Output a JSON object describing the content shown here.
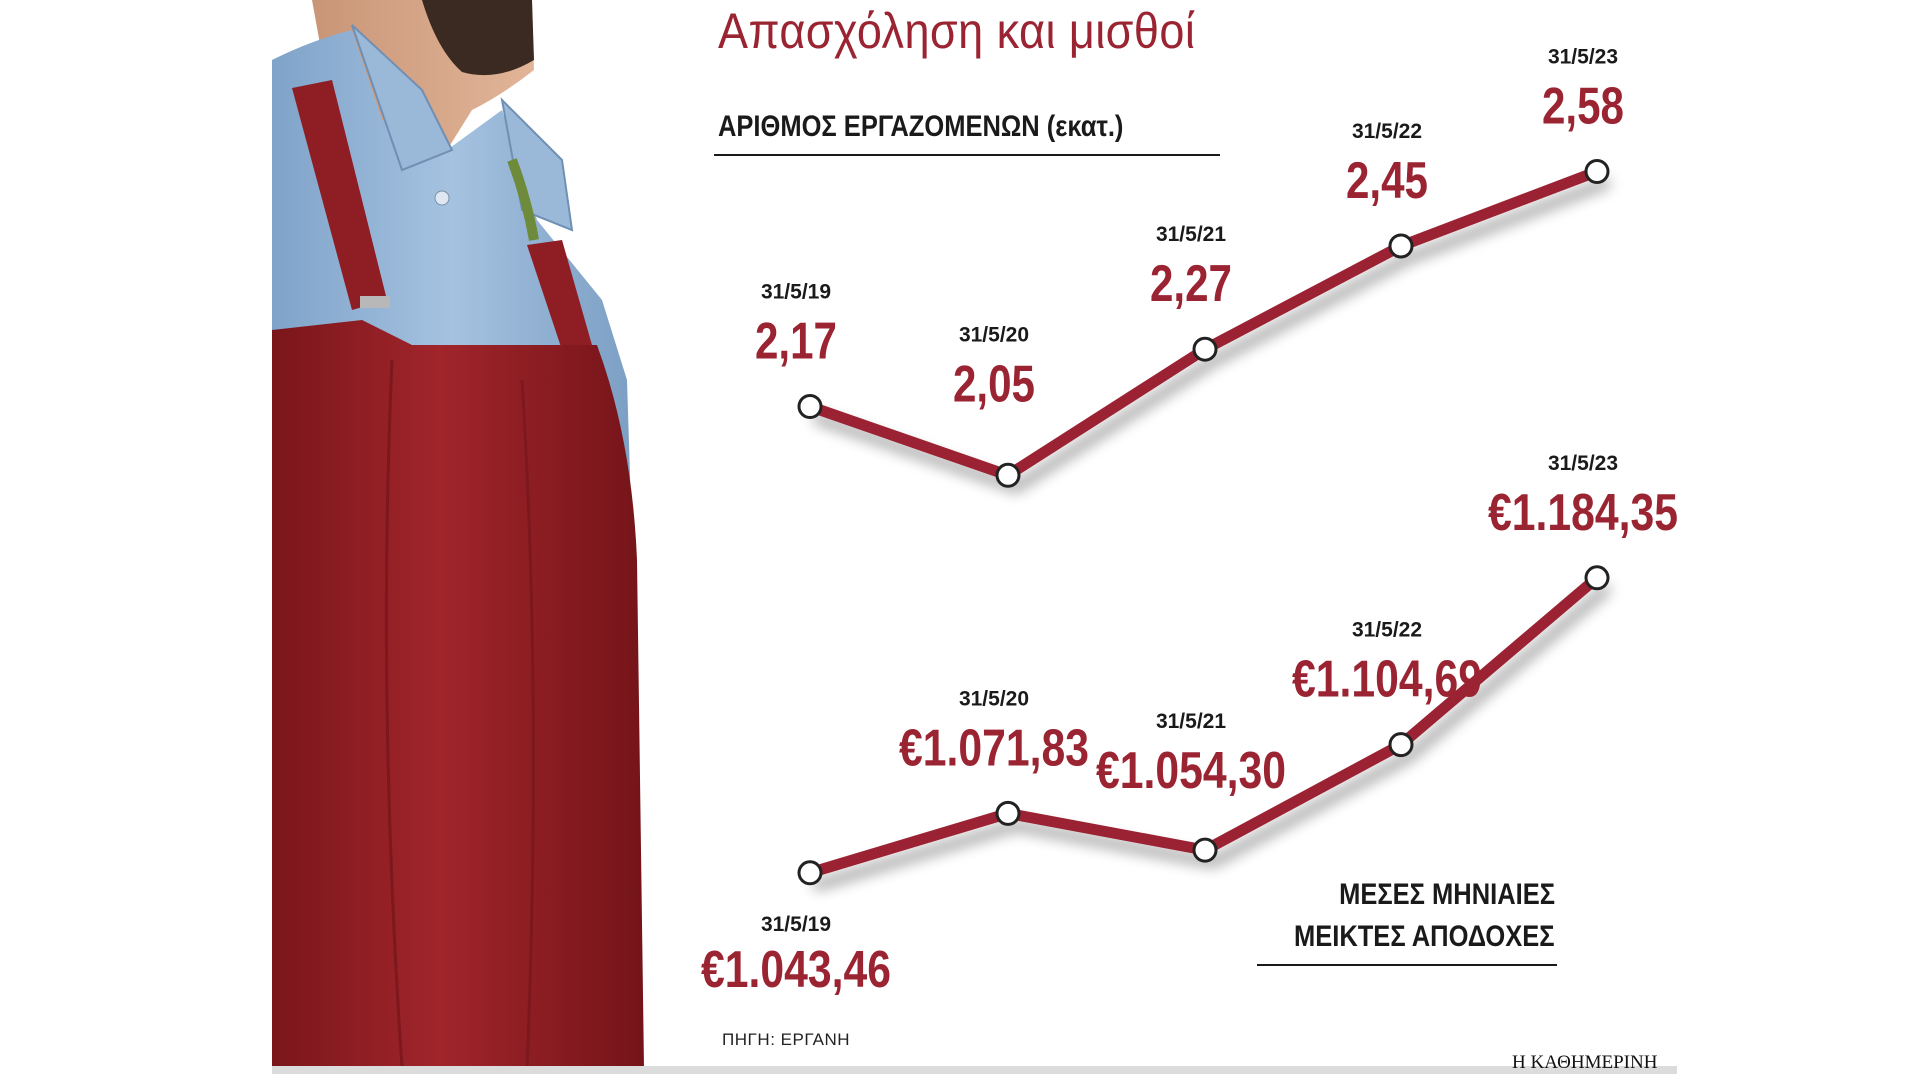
{
  "title": "Απασχόληση και μισθοί",
  "source": "ΠΗΓΗ: ΕΡΓΑΝΗ",
  "publisher": "Η ΚΑΘΗΜΕΡΙΝΗ",
  "colors": {
    "accent": "#9b2432",
    "text": "#1a1a1a",
    "apron": "#8f1f24",
    "shirt": "#8fb2d6"
  },
  "chart_data": [
    {
      "type": "line",
      "title": "ΑΡΙΘΜΟΣ ΕΡΓΑΖΟΜΕΝΩΝ (εκατ.)",
      "x": [
        "31/5/19",
        "31/5/20",
        "31/5/21",
        "31/5/22",
        "31/5/23"
      ],
      "values": [
        2.17,
        2.05,
        2.27,
        2.45,
        2.58
      ],
      "value_labels": [
        "2,17",
        "2,05",
        "2,27",
        "2,45",
        "2,58"
      ],
      "grid": false,
      "legend": "none"
    },
    {
      "type": "line",
      "title_lines": [
        "ΜΕΣΕΣ ΜΗΝΙΑΙΕΣ",
        "ΜΕΙΚΤΕΣ ΑΠΟΔΟΧΕΣ"
      ],
      "x": [
        "31/5/19",
        "31/5/20",
        "31/5/21",
        "31/5/22",
        "31/5/23"
      ],
      "values": [
        1043.46,
        1071.83,
        1054.3,
        1104.69,
        1184.35
      ],
      "value_labels": [
        "€1.043,46",
        "€1.071,83",
        "€1.054,30",
        "€1.104,69",
        "€1.184,35"
      ],
      "grid": false,
      "legend": "none"
    }
  ]
}
